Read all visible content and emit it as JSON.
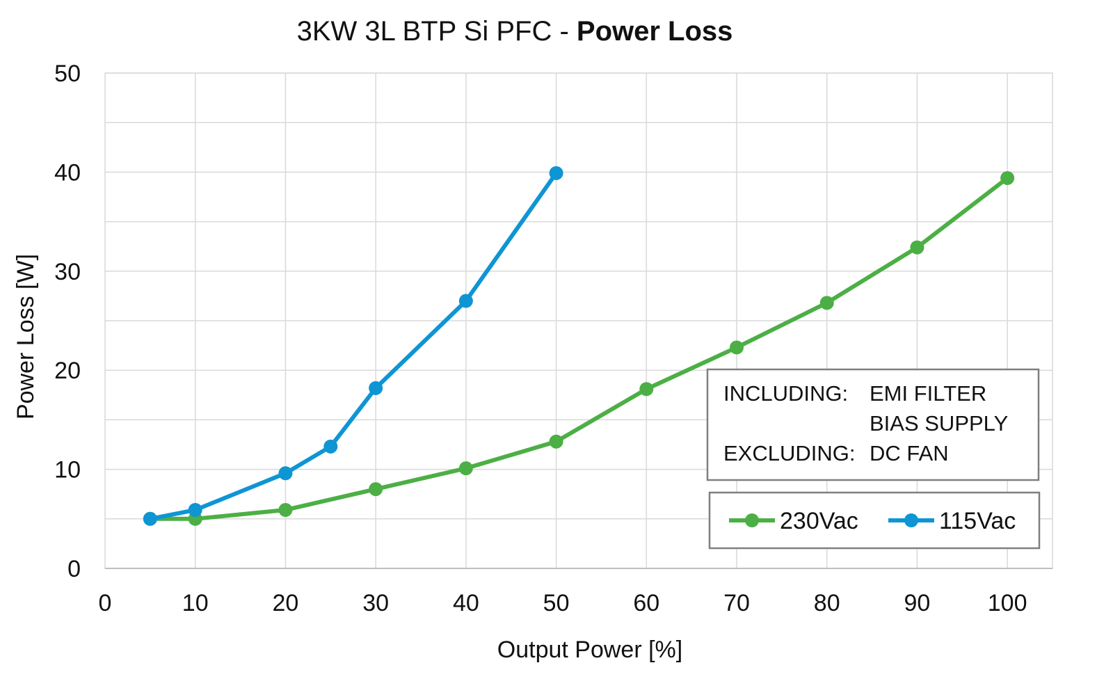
{
  "chart_data": {
    "type": "line",
    "title": "3KW 3L BTP Si PFC - ",
    "title_emphasis": "Power Loss",
    "xlabel": "Output Power [%]",
    "ylabel": "Power Loss [W]",
    "xlim": [
      0,
      105
    ],
    "ylim": [
      0,
      50
    ],
    "x_ticks": [
      "0",
      "10",
      "20",
      "30",
      "40",
      "50",
      "60",
      "70",
      "80",
      "90",
      "100"
    ],
    "y_ticks": [
      "0",
      "10",
      "20",
      "30",
      "40",
      "50"
    ],
    "grid": true,
    "legend_position": "bottom-right",
    "series": [
      {
        "name": "230Vac",
        "color": "#4caf45",
        "points": [
          [
            5,
            5.0
          ],
          [
            10,
            5.0
          ],
          [
            20,
            5.9
          ],
          [
            30,
            8.0
          ],
          [
            40,
            10.1
          ],
          [
            50,
            12.8
          ],
          [
            60,
            18.1
          ],
          [
            70,
            22.3
          ],
          [
            80,
            26.8
          ],
          [
            90,
            32.4
          ],
          [
            100,
            39.4
          ]
        ]
      },
      {
        "name": "115Vac",
        "color": "#0e95d4",
        "points": [
          [
            5,
            5.0
          ],
          [
            10,
            5.9
          ],
          [
            20,
            9.6
          ],
          [
            25,
            12.3
          ],
          [
            30,
            18.2
          ],
          [
            40,
            27.0
          ],
          [
            50,
            39.9
          ]
        ]
      }
    ],
    "annotation": {
      "line1_label": "INCLUDING:",
      "line1_value": "EMI FILTER",
      "line2_value": "BIAS SUPPLY",
      "line3_label": "EXCLUDING:",
      "line3_value": "DC FAN"
    }
  }
}
